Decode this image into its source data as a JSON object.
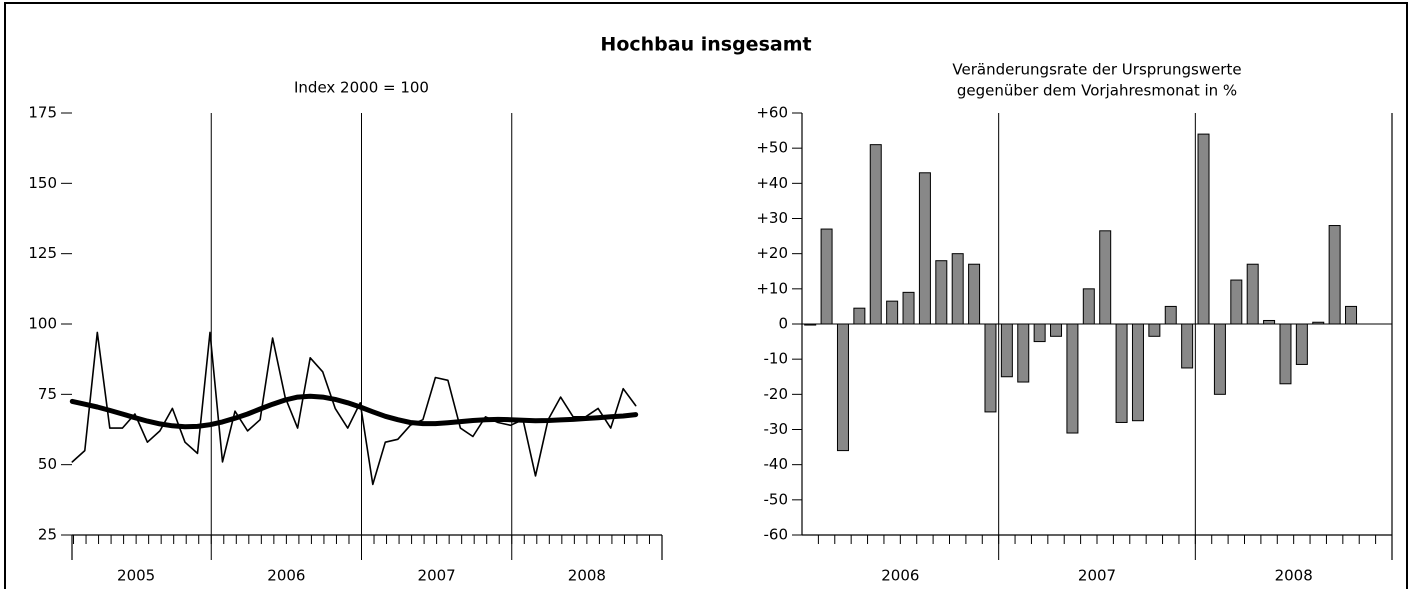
{
  "title": "Hochbau insgesamt",
  "chart_data": [
    {
      "type": "line",
      "subtitle": [
        "Index 2000 = 100"
      ],
      "categories": [
        null,
        null,
        null,
        null,
        null,
        null,
        null,
        null,
        null,
        null,
        null,
        null,
        null,
        null,
        null,
        null,
        null,
        null,
        null,
        null,
        null,
        null,
        null,
        null,
        null,
        null,
        null,
        null,
        null,
        null,
        null,
        null,
        null,
        null,
        null,
        null,
        null,
        null,
        null,
        null,
        null,
        null,
        null,
        null,
        null,
        null,
        null,
        null
      ],
      "groups": [
        "2005",
        "2006",
        "2007",
        "2008"
      ],
      "series": [
        {
          "color": "#000000",
          "values": [
            51,
            55,
            97,
            63,
            63,
            68,
            58,
            62,
            70,
            58,
            54,
            97,
            51,
            69,
            62,
            66,
            95,
            74,
            63,
            88,
            83,
            70,
            63,
            72,
            43,
            58,
            59,
            64,
            66,
            81,
            80,
            63,
            60,
            67,
            65,
            64,
            66,
            46,
            66,
            74,
            67,
            67,
            70,
            63,
            77,
            71,
            null,
            null
          ]
        },
        {
          "color": "#000000",
          "values": [
            72.5,
            71.5,
            70.5,
            69.3,
            68,
            66.7,
            65.5,
            64.5,
            63.8,
            63.5,
            63.6,
            64.2,
            65.2,
            66.5,
            68,
            69.8,
            71.5,
            73,
            74,
            74.3,
            74,
            73.2,
            72,
            70.5,
            68.8,
            67.2,
            66,
            65,
            64.6,
            64.6,
            64.9,
            65.3,
            65.7,
            66,
            66.1,
            66,
            65.8,
            65.6,
            65.7,
            65.9,
            66.1,
            66.4,
            66.7,
            67,
            67.3,
            67.8,
            null,
            null
          ]
        }
      ],
      "ylim": [
        25,
        175
      ],
      "yticks": [
        25,
        50,
        75,
        100,
        125,
        150,
        175
      ]
    },
    {
      "type": "bar",
      "subtitle": [
        "Veränderungsrate der Ursprungswerte",
        "gegenüber dem Vorjahresmonat in %"
      ],
      "categories": [
        null,
        null,
        null,
        null,
        null,
        null,
        null,
        null,
        null,
        null,
        null,
        null,
        null,
        null,
        null,
        null,
        null,
        null,
        null,
        null,
        null,
        null,
        null,
        null,
        null,
        null,
        null,
        null,
        null,
        null,
        null,
        null,
        null,
        null,
        null,
        null
      ],
      "groups": [
        "2006",
        "2007",
        "2008"
      ],
      "color": "#888888",
      "values": [
        -0.3,
        27,
        -36,
        4.5,
        51,
        6.5,
        9,
        43,
        18,
        20,
        17,
        -25,
        -15,
        -16.5,
        -5,
        -3.5,
        -31,
        10,
        26.5,
        -28,
        -27.5,
        -3.5,
        5,
        -12.5,
        54,
        -20,
        12.5,
        17,
        1,
        -17,
        -11.5,
        0.5,
        28,
        5,
        null,
        null
      ],
      "ylim": [
        -60,
        60
      ],
      "yticks": [
        -60,
        -50,
        -40,
        -30,
        -20,
        -10,
        0,
        {
          "value": 10,
          "label": "+10"
        },
        {
          "value": 20,
          "label": "+20"
        },
        {
          "value": 30,
          "label": "+30"
        },
        {
          "value": 40,
          "label": "+40"
        },
        {
          "value": 50,
          "label": "+50"
        },
        {
          "value": 60,
          "label": "+60"
        }
      ]
    }
  ]
}
